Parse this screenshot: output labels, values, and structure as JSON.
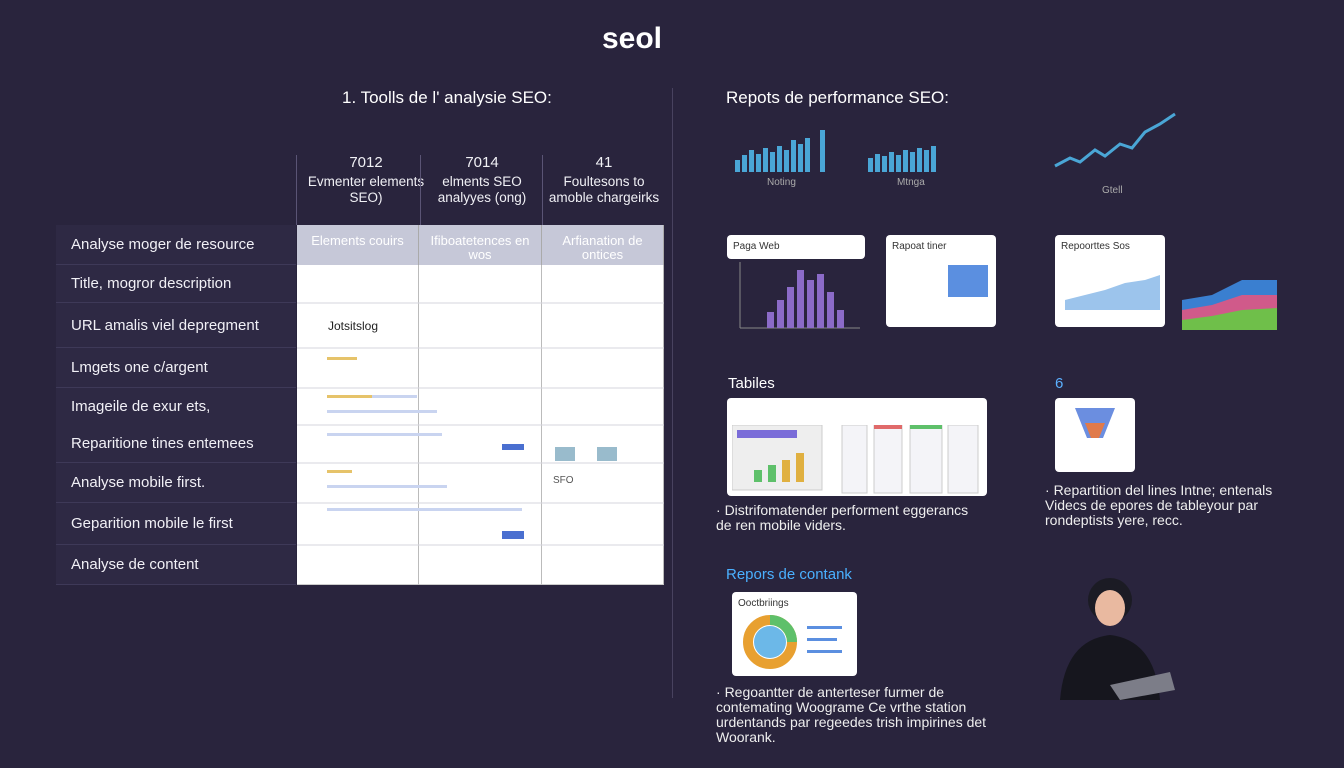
{
  "header": {
    "title": "seol"
  },
  "left": {
    "heading": "1. Toolls de l' analysie SEO:",
    "table": {
      "columns": [
        {
          "number": "7012",
          "label": "Evmenter elements SEO)"
        },
        {
          "number": "7014",
          "label": "elments SEO analyyes (ong)"
        },
        {
          "number": "41",
          "label": "Foultesons to amoble chargeirks"
        }
      ],
      "subheader": [
        "Elements couirs",
        "Ifiboatetences en wos",
        "Arfianation de ontices"
      ],
      "rows": [
        "Analyse moger de resource",
        "Title, mogror description",
        "URL amalis viel depregment",
        "Lmgets one c/argent",
        "Imageile de exur ets,",
        "Reparitione tines entemees",
        "Analyse mobile first.",
        "Geparition mobile le first",
        "Analyse de content"
      ],
      "cells": {
        "jotsitslog": "Jotsitslog",
        "sfo": "SFO"
      }
    }
  },
  "right": {
    "heading": "Repots de performance SEO:",
    "mini_charts": [
      "Noting",
      "Mtnga",
      "Gtell"
    ],
    "cards": [
      "Paga Web",
      "Rapoat tiner",
      "Repoorttes Sos"
    ],
    "tables_heading": "Tabiles",
    "count": "6",
    "bullet_1": "Distrifomatender performent eggerancs de ren mobile viders.",
    "bullet_2": "Repartition del lines Intne; entenals Videcs de epores de tableyour par rondeptists yere, recc.",
    "content_heading": "Repors de contank",
    "content_card": "Ooctbriings",
    "bullet_3": "Regoantter de anterteser furmer de contemating Woograme Ce vrthe station urdentands par regeedes trish impirines det Woorank."
  }
}
